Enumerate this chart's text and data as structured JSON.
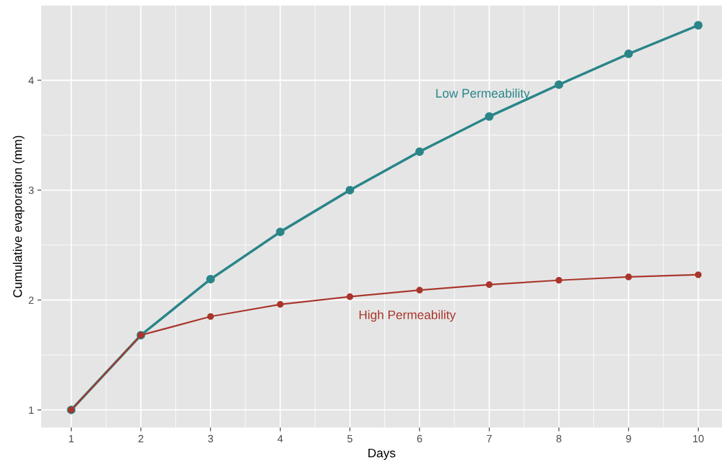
{
  "chart_data": {
    "type": "line",
    "xlabel": "Days",
    "ylabel": "Cumulative evaporation (mm)",
    "x": [
      1,
      2,
      3,
      4,
      5,
      6,
      7,
      8,
      9,
      10
    ],
    "series": [
      {
        "name": "Low Permeability",
        "color": "#2a8589",
        "values": [
          1.0,
          1.68,
          2.19,
          2.62,
          3.0,
          3.35,
          3.67,
          3.96,
          4.24,
          4.5
        ]
      },
      {
        "name": "High Permeability",
        "color": "#a9352b",
        "values": [
          1.0,
          1.68,
          1.85,
          1.96,
          2.03,
          2.09,
          2.14,
          2.18,
          2.21,
          2.23
        ]
      }
    ],
    "xlim": [
      0.57,
      10.34
    ],
    "ylim": [
      0.84,
      4.68
    ],
    "xticks": [
      1,
      2,
      3,
      4,
      5,
      6,
      7,
      8,
      9,
      10
    ],
    "yticks": [
      1,
      2,
      3,
      4
    ],
    "grid": true,
    "marker": "circle",
    "line_style": "solid",
    "legend": false
  }
}
